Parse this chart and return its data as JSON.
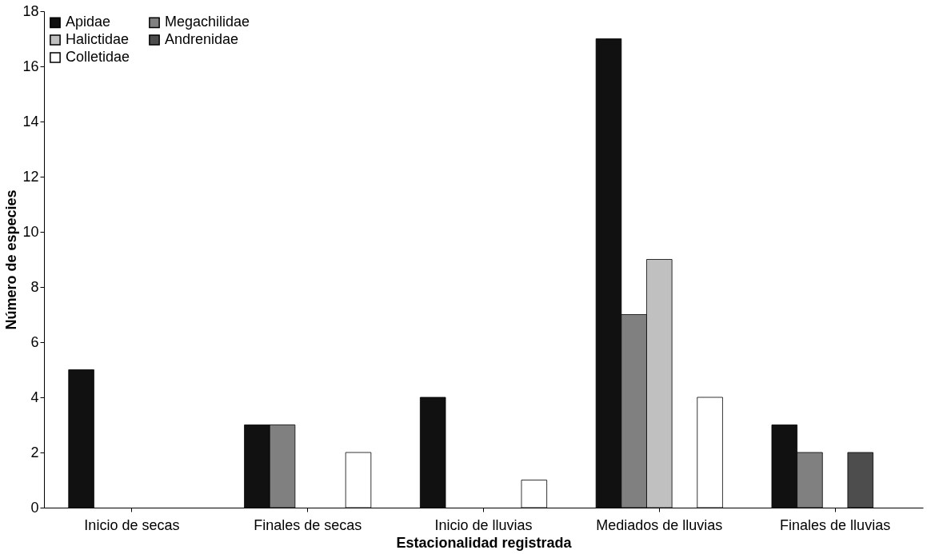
{
  "chart_data": {
    "type": "bar",
    "xlabel": "Estacionalidad registrada",
    "ylabel": "Número de especies",
    "categories": [
      "Inicio de secas",
      "Finales de secas",
      "Inicio de lluvias",
      "Mediados de lluvias",
      "Finales de lluvias"
    ],
    "series": [
      {
        "name": "Apidae",
        "color": "#111111",
        "values": [
          5,
          3,
          4,
          17,
          3
        ]
      },
      {
        "name": "Megachilidae",
        "color": "#808080",
        "values": [
          null,
          3,
          null,
          7,
          2
        ]
      },
      {
        "name": "Halictidae",
        "color": "#c0c0c0",
        "values": [
          null,
          null,
          null,
          9,
          null
        ]
      },
      {
        "name": "Andrenidae",
        "color": "#4d4d4d",
        "values": [
          null,
          null,
          null,
          null,
          2
        ]
      },
      {
        "name": "Colletidae",
        "color": "#ffffff",
        "values": [
          null,
          2,
          1,
          4,
          null
        ]
      }
    ],
    "ylim": [
      0,
      18
    ],
    "yticks": [
      0,
      2,
      4,
      6,
      8,
      10,
      12,
      14,
      16,
      18
    ],
    "grid": false,
    "legend": "top left"
  }
}
